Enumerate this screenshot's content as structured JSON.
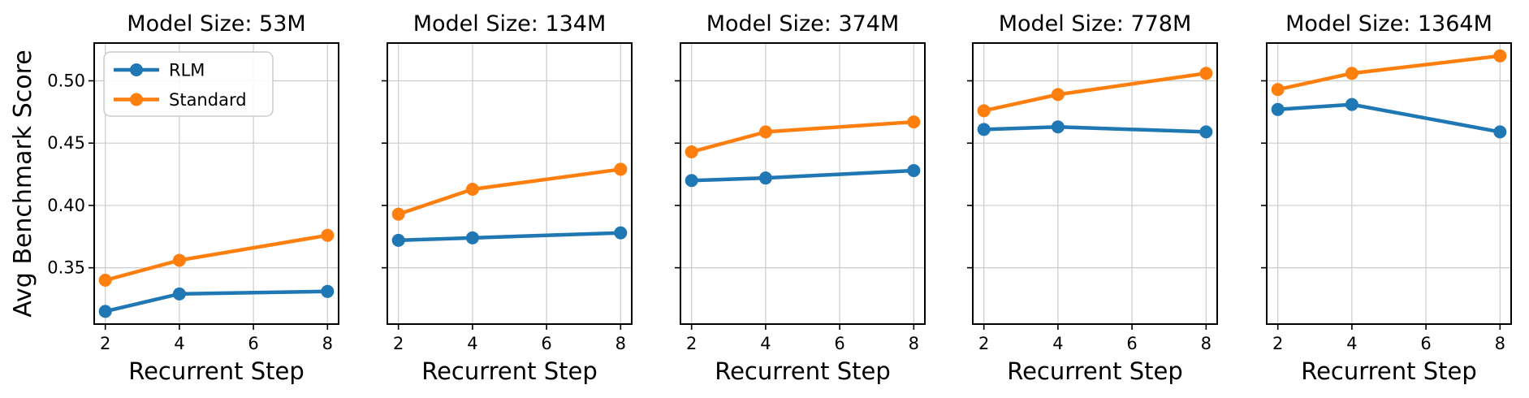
{
  "figure": {
    "ylabel": "Avg Benchmark Score",
    "yticklabels": [
      "0.35",
      "0.40",
      "0.45",
      "0.50"
    ],
    "background_color": "#ffffff",
    "grid_color": "#cccccc",
    "spine_color": "#000000",
    "text_color": "#000000"
  },
  "legend": {
    "position": "upper-left-first-subplot",
    "entries": [
      {
        "label": "RLM",
        "color": "#1f77b4"
      },
      {
        "label": "Standard",
        "color": "#ff7f0e"
      }
    ]
  },
  "chart_data": [
    {
      "type": "line",
      "title": "Model Size: 53M",
      "xlabel": "Recurrent Step",
      "x": [
        2,
        4,
        8
      ],
      "xticks": [
        2,
        4,
        6,
        8
      ],
      "yticks": [
        0.35,
        0.4,
        0.45,
        0.5
      ],
      "xlim": [
        1.7,
        8.3
      ],
      "ylim": [
        0.3048,
        0.5303
      ],
      "grid": true,
      "show_yticklabels": true,
      "legend": true,
      "series": [
        {
          "name": "RLM",
          "color": "#1f77b4",
          "values": [
            0.315,
            0.329,
            0.331
          ]
        },
        {
          "name": "Standard",
          "color": "#ff7f0e",
          "values": [
            0.34,
            0.356,
            0.376
          ]
        }
      ]
    },
    {
      "type": "line",
      "title": "Model Size: 134M",
      "xlabel": "Recurrent Step",
      "x": [
        2,
        4,
        8
      ],
      "xticks": [
        2,
        4,
        6,
        8
      ],
      "yticks": [
        0.35,
        0.4,
        0.45,
        0.5
      ],
      "xlim": [
        1.7,
        8.3
      ],
      "ylim": [
        0.3048,
        0.5303
      ],
      "grid": true,
      "show_yticklabels": false,
      "legend": false,
      "series": [
        {
          "name": "RLM",
          "color": "#1f77b4",
          "values": [
            0.372,
            0.374,
            0.378
          ]
        },
        {
          "name": "Standard",
          "color": "#ff7f0e",
          "values": [
            0.393,
            0.413,
            0.429
          ]
        }
      ]
    },
    {
      "type": "line",
      "title": "Model Size: 374M",
      "xlabel": "Recurrent Step",
      "x": [
        2,
        4,
        8
      ],
      "xticks": [
        2,
        4,
        6,
        8
      ],
      "yticks": [
        0.35,
        0.4,
        0.45,
        0.5
      ],
      "xlim": [
        1.7,
        8.3
      ],
      "ylim": [
        0.3048,
        0.5303
      ],
      "grid": true,
      "show_yticklabels": false,
      "legend": false,
      "series": [
        {
          "name": "RLM",
          "color": "#1f77b4",
          "values": [
            0.42,
            0.422,
            0.428
          ]
        },
        {
          "name": "Standard",
          "color": "#ff7f0e",
          "values": [
            0.443,
            0.459,
            0.467
          ]
        }
      ]
    },
    {
      "type": "line",
      "title": "Model Size: 778M",
      "xlabel": "Recurrent Step",
      "x": [
        2,
        4,
        8
      ],
      "xticks": [
        2,
        4,
        6,
        8
      ],
      "yticks": [
        0.35,
        0.4,
        0.45,
        0.5
      ],
      "xlim": [
        1.7,
        8.3
      ],
      "ylim": [
        0.3048,
        0.5303
      ],
      "grid": true,
      "show_yticklabels": false,
      "legend": false,
      "series": [
        {
          "name": "RLM",
          "color": "#1f77b4",
          "values": [
            0.461,
            0.463,
            0.459
          ]
        },
        {
          "name": "Standard",
          "color": "#ff7f0e",
          "values": [
            0.476,
            0.489,
            0.506
          ]
        }
      ]
    },
    {
      "type": "line",
      "title": "Model Size: 1364M",
      "xlabel": "Recurrent Step",
      "x": [
        2,
        4,
        8
      ],
      "xticks": [
        2,
        4,
        6,
        8
      ],
      "yticks": [
        0.35,
        0.4,
        0.45,
        0.5
      ],
      "xlim": [
        1.7,
        8.3
      ],
      "ylim": [
        0.3048,
        0.5303
      ],
      "grid": true,
      "show_yticklabels": false,
      "legend": false,
      "series": [
        {
          "name": "RLM",
          "color": "#1f77b4",
          "values": [
            0.477,
            0.481,
            0.459
          ]
        },
        {
          "name": "Standard",
          "color": "#ff7f0e",
          "values": [
            0.493,
            0.506,
            0.52
          ]
        }
      ]
    }
  ]
}
